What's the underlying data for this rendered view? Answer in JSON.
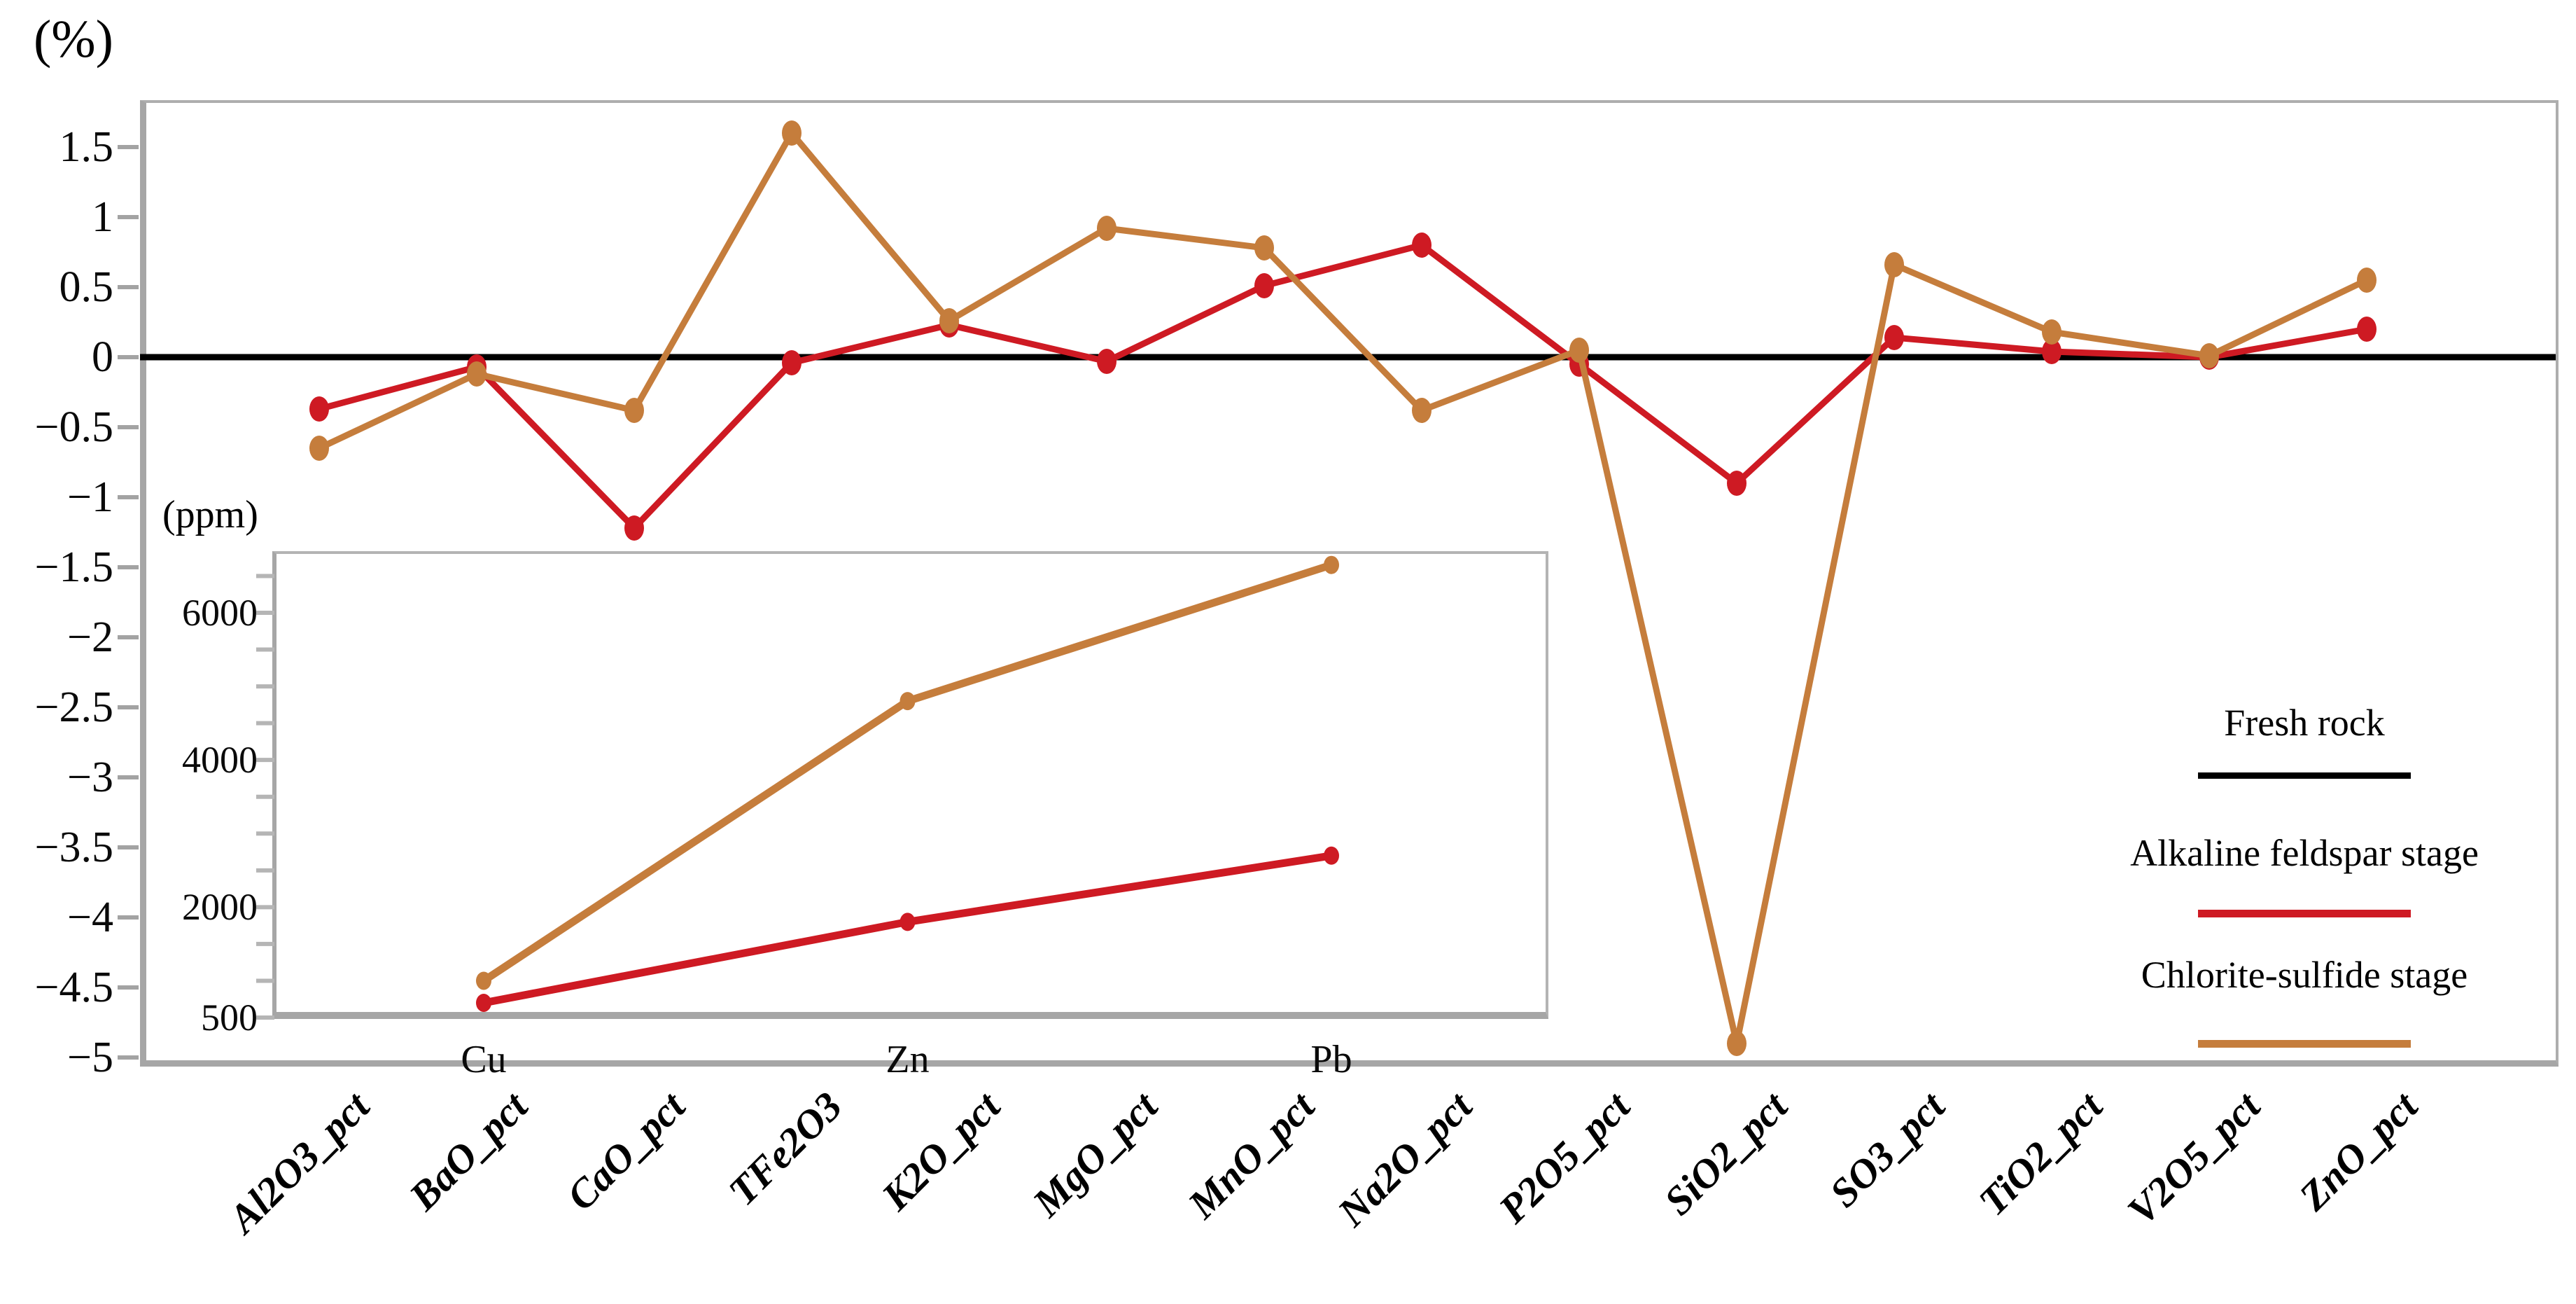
{
  "figure": {
    "percent_axis_label": "(%)",
    "ppm_axis_label": "(ppm)"
  },
  "chart_data": [
    {
      "type": "line",
      "title": "",
      "ylabel": "(%)",
      "xlabel": "",
      "grid": false,
      "legend_position": "right-middle",
      "categories": [
        "Al2O3_pct",
        "BaO_pct",
        "CaO_pct",
        "TFe2O3",
        "K2O_pct",
        "MgO_pct",
        "MnO_pct",
        "Na2O_pct",
        "P2O5_pct",
        "SiO2_pct",
        "SO3_pct",
        "TiO2_pct",
        "V2O5_pct",
        "ZnO_pct"
      ],
      "ylim": [
        -5.15,
        1.84
      ],
      "yticks": [
        1.5,
        1,
        0.5,
        0,
        -0.5,
        -1,
        -1.5,
        -2,
        -2.5,
        -3,
        -3.5,
        -4,
        -4.5,
        -5
      ],
      "ytick_labels": [
        "1.5",
        "1",
        "0.5",
        "0",
        "−0.5",
        "−1",
        "−1.5",
        "−2",
        "−2.5",
        "−3",
        "−3.5",
        "−4",
        "−4.5",
        "−5"
      ],
      "series": [
        {
          "name": "Fresh rock",
          "type": "baseline",
          "color": "#000000",
          "value": 0
        },
        {
          "name": "Alkaline feldspar stage",
          "type": "line",
          "color": "#ce1a23",
          "values": [
            -0.37,
            -0.07,
            -1.22,
            -0.04,
            0.23,
            -0.03,
            0.51,
            0.8,
            -0.05,
            -0.9,
            0.14,
            0.04,
            0.0,
            0.2
          ]
        },
        {
          "name": "Chlorite-sulfide stage",
          "type": "line",
          "color": "#c57d3c",
          "values": [
            -0.65,
            -0.12,
            -0.38,
            1.6,
            0.26,
            0.92,
            0.78,
            -0.38,
            0.05,
            -4.9,
            0.66,
            0.18,
            0.01,
            0.55
          ]
        }
      ]
    },
    {
      "type": "line",
      "title": "",
      "ylabel": "(ppm)",
      "xlabel": "",
      "grid": false,
      "categories": [
        "Cu",
        "Zn",
        "Pb"
      ],
      "ylim": [
        500,
        6850
      ],
      "yticks": [
        6000,
        4000,
        2000,
        500
      ],
      "ytick_labels": [
        "6000",
        "4000",
        "2000",
        "500"
      ],
      "series": [
        {
          "name": "Alkaline feldspar stage",
          "type": "line",
          "color": "#ce1a23",
          "values": [
            700,
            1800,
            2700
          ]
        },
        {
          "name": "Chlorite-sulfide stage",
          "type": "line",
          "color": "#c57d3c",
          "values": [
            1000,
            4800,
            6650
          ]
        }
      ]
    }
  ],
  "legend": {
    "items": [
      {
        "label": "Fresh rock",
        "color": "#000000"
      },
      {
        "label": "Alkaline feldspar stage",
        "color": "#ce1a23"
      },
      {
        "label": "Chlorite-sulfide stage",
        "color": "#c57d3c"
      }
    ]
  },
  "colors": {
    "baseline": "#000000",
    "alkaline_feldspar": "#ce1a23",
    "chlorite_sulfide": "#c57d3c",
    "plot_border": "#a6a6a6",
    "tick": "#a3a3a3"
  }
}
